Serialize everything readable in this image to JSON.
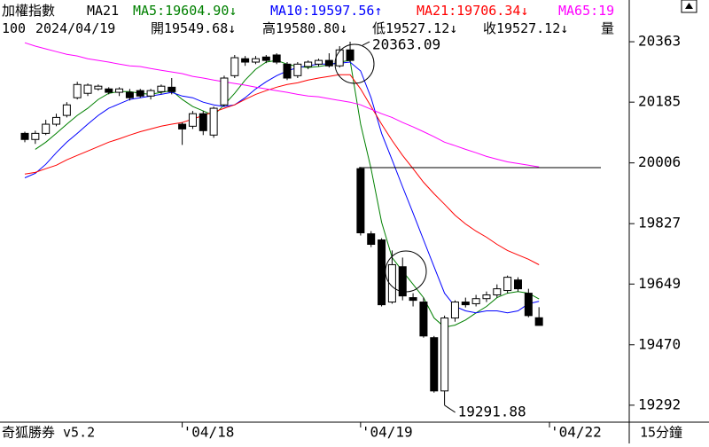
{
  "chart_data": {
    "type": "candlestick",
    "title": "加權指數",
    "indicator": "MA21",
    "info": [
      "100",
      "2024/04/19",
      "開19549.68↓",
      "高19580.80↓",
      "低19527.12↓",
      "收19527.12↓",
      "量"
    ],
    "footer": "奇狐勝券 v5.2",
    "timeframe": "15分鐘",
    "high_label": "20363.09",
    "low_label": "19291.88",
    "hline": 19992,
    "up_color": "#ffffff",
    "down_color": "#000000",
    "categories": [
      null,
      null,
      null,
      null,
      null,
      null,
      null,
      null,
      null,
      null,
      null,
      null,
      null,
      null,
      null,
      "'04/18",
      null,
      null,
      null,
      null,
      null,
      null,
      null,
      null,
      null,
      null,
      null,
      null,
      null,
      null,
      null,
      null,
      "'04/19",
      null,
      null,
      null,
      null,
      null,
      null,
      null,
      null,
      null,
      null,
      null,
      null,
      null,
      null,
      null,
      null,
      null,
      "'04/22"
    ],
    "open": [
      20093,
      20075,
      20093,
      20120,
      20146,
      20198,
      20211,
      20224,
      20224,
      20214,
      20214,
      20219,
      20203,
      20216,
      20229,
      20120,
      20114,
      20151,
      20088,
      20177,
      20263,
      20313,
      20303,
      20318,
      20324,
      20297,
      20263,
      20290,
      20297,
      20308,
      20292,
      20339,
      19989,
      19797,
      19779,
      19596,
      19700,
      19609,
      19596,
      19491,
      19334,
      19549,
      19596,
      19591,
      19606,
      19617,
      19630,
      19661,
      19622,
      19549.68,
      null
    ],
    "high": [
      20098,
      20101,
      20133,
      20151,
      20185,
      20245,
      20240,
      20237,
      20229,
      20229,
      20224,
      20224,
      20224,
      20237,
      20256,
      20125,
      20159,
      20159,
      20172,
      20263,
      20324,
      20321,
      20321,
      20324,
      20329,
      20303,
      20303,
      20308,
      20313,
      20329,
      20350,
      20363.09,
      19994,
      19805,
      19784,
      19748,
      19727,
      19622,
      19609,
      19496,
      19556,
      19601,
      19609,
      19617,
      19627,
      19648,
      19674,
      19669,
      19635,
      19580.8,
      null
    ],
    "low": [
      20067,
      20062,
      20088,
      20114,
      20140,
      20193,
      20203,
      20219,
      20208,
      20203,
      20190,
      20198,
      20193,
      20208,
      20208,
      20059,
      20106,
      20088,
      20080,
      20172,
      20256,
      20292,
      20297,
      20300,
      20297,
      20250,
      20256,
      20282,
      20290,
      20287,
      20287,
      20303,
      19792,
      19758,
      19583,
      19591,
      19601,
      19583,
      19491,
      19329,
      19291.88,
      19538,
      19580,
      19583,
      19596,
      19609,
      19622,
      19627,
      19551,
      19527.12,
      null
    ],
    "close": [
      20075,
      20093,
      20120,
      20140,
      20177,
      20237,
      20235,
      20232,
      20214,
      20224,
      20198,
      20203,
      20219,
      20232,
      20216,
      20106,
      20151,
      20101,
      20167,
      20256,
      20316,
      20303,
      20313,
      20308,
      20303,
      20256,
      20297,
      20303,
      20308,
      20292,
      20339,
      20308,
      19800,
      19766,
      19588,
      19706,
      19614,
      19601,
      19496,
      19334,
      19549,
      19596,
      19588,
      19606,
      19617,
      19635,
      19669,
      19635,
      19556,
      19527.12,
      null
    ],
    "series": [
      {
        "name": "MA5:19604.90↓",
        "color": "#008000",
        "values": [
          null,
          20046,
          20067,
          20093,
          20120,
          20146,
          20167,
          20193,
          20211,
          20216,
          20216,
          20211,
          20208,
          20214,
          20219,
          20193,
          20172,
          20159,
          20146,
          20177,
          20211,
          20250,
          20282,
          20303,
          20308,
          20297,
          20290,
          20287,
          20290,
          20295,
          20303,
          20308,
          20120,
          19989,
          19831,
          19727,
          19687,
          19648,
          19609,
          19549,
          19522,
          19528,
          19543,
          19564,
          19583,
          19609,
          19622,
          19627,
          19622,
          19605,
          null
        ]
      },
      {
        "name": "MA10:19597.56↑",
        "color": "#0000ff",
        "values": [
          19962,
          19975,
          20002,
          20036,
          20067,
          20093,
          20120,
          20146,
          20167,
          20180,
          20193,
          20198,
          20203,
          20208,
          20214,
          20203,
          20198,
          20185,
          20177,
          20172,
          20177,
          20198,
          20224,
          20245,
          20263,
          20277,
          20287,
          20292,
          20297,
          20297,
          20300,
          20303,
          20277,
          20198,
          20093,
          20015,
          19936,
          19858,
          19779,
          19700,
          19622,
          19583,
          19570,
          19564,
          19570,
          19570,
          19564,
          19570,
          19591,
          19598,
          null
        ]
      },
      {
        "name": "MA21:19706.34↓",
        "color": "#ff0000",
        "values": [
          19973,
          19978,
          19989,
          19999,
          20015,
          20028,
          20041,
          20054,
          20067,
          20077,
          20088,
          20098,
          20106,
          20114,
          20120,
          20125,
          20135,
          20146,
          20156,
          20167,
          20177,
          20193,
          20208,
          20219,
          20229,
          20237,
          20242,
          20250,
          20256,
          20261,
          20266,
          20266,
          20224,
          20172,
          20120,
          20072,
          20028,
          19989,
          19949,
          19915,
          19884,
          19852,
          19826,
          19805,
          19787,
          19766,
          19748,
          19735,
          19722,
          19706,
          null
        ]
      },
      {
        "name": "MA65:19",
        "color": "#ff00ff",
        "values": [
          20360,
          20350,
          20342,
          20334,
          20326,
          20321,
          20313,
          20308,
          20303,
          20297,
          20292,
          20290,
          20284,
          20279,
          20274,
          20269,
          20261,
          20256,
          20250,
          20245,
          20240,
          20235,
          20229,
          20224,
          20219,
          20214,
          20208,
          20203,
          20201,
          20195,
          20190,
          20185,
          20177,
          20164,
          20151,
          20140,
          20125,
          20112,
          20098,
          20083,
          20067,
          20057,
          20046,
          20036,
          20025,
          20017,
          20009,
          20004,
          19999,
          19994,
          null
        ]
      }
    ],
    "ylim": [
      19242,
      20486
    ],
    "yticks": [
      20363,
      20185,
      20006,
      19827,
      19649,
      19470,
      19292
    ]
  }
}
